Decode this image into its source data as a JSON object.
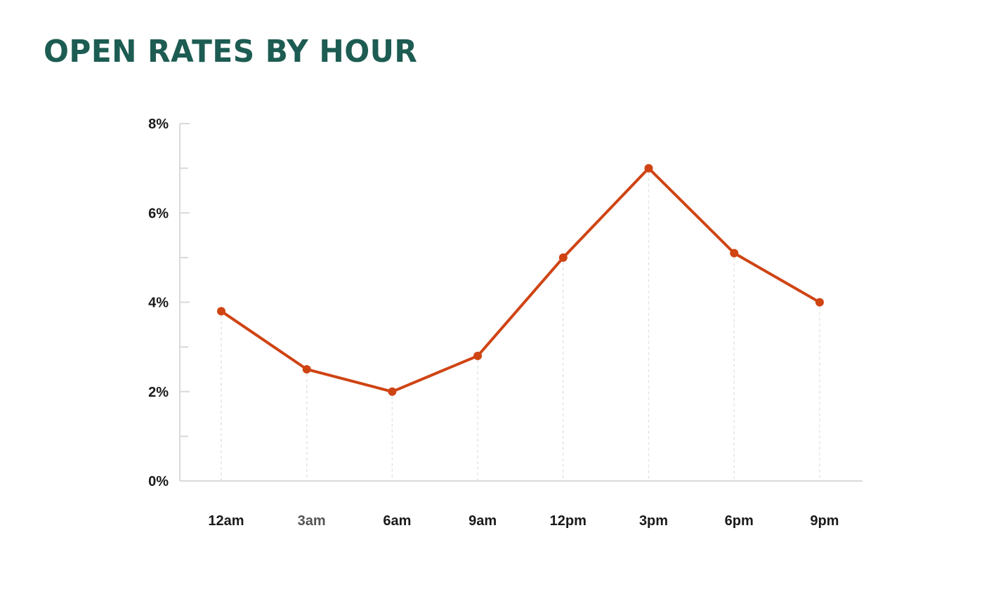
{
  "title": "OPEN RATES BY HOUR",
  "colors": {
    "title": "#1d5c52",
    "series": "#cf4413",
    "axis": "#d9d9d9",
    "label": "#1a1a1a"
  },
  "chart_data": {
    "type": "line",
    "title": "OPEN RATES BY HOUR",
    "xlabel": "",
    "ylabel": "",
    "categories": [
      "12am",
      "3am",
      "6am",
      "9am",
      "12pm",
      "3pm",
      "6pm",
      "9pm"
    ],
    "series": [
      {
        "values": [
          3.8,
          2.5,
          2.0,
          2.8,
          5.0,
          7.0,
          5.1,
          4.0
        ]
      }
    ],
    "ylim": [
      0,
      8
    ],
    "y_ticks": [
      0,
      2,
      4,
      6,
      8
    ],
    "y_tick_labels": [
      "0%",
      "2%",
      "4%",
      "6%",
      "8%"
    ],
    "y_minor_ticks": [
      1,
      3,
      5,
      7
    ],
    "grid": false,
    "drop_lines": true,
    "legend": "none"
  }
}
